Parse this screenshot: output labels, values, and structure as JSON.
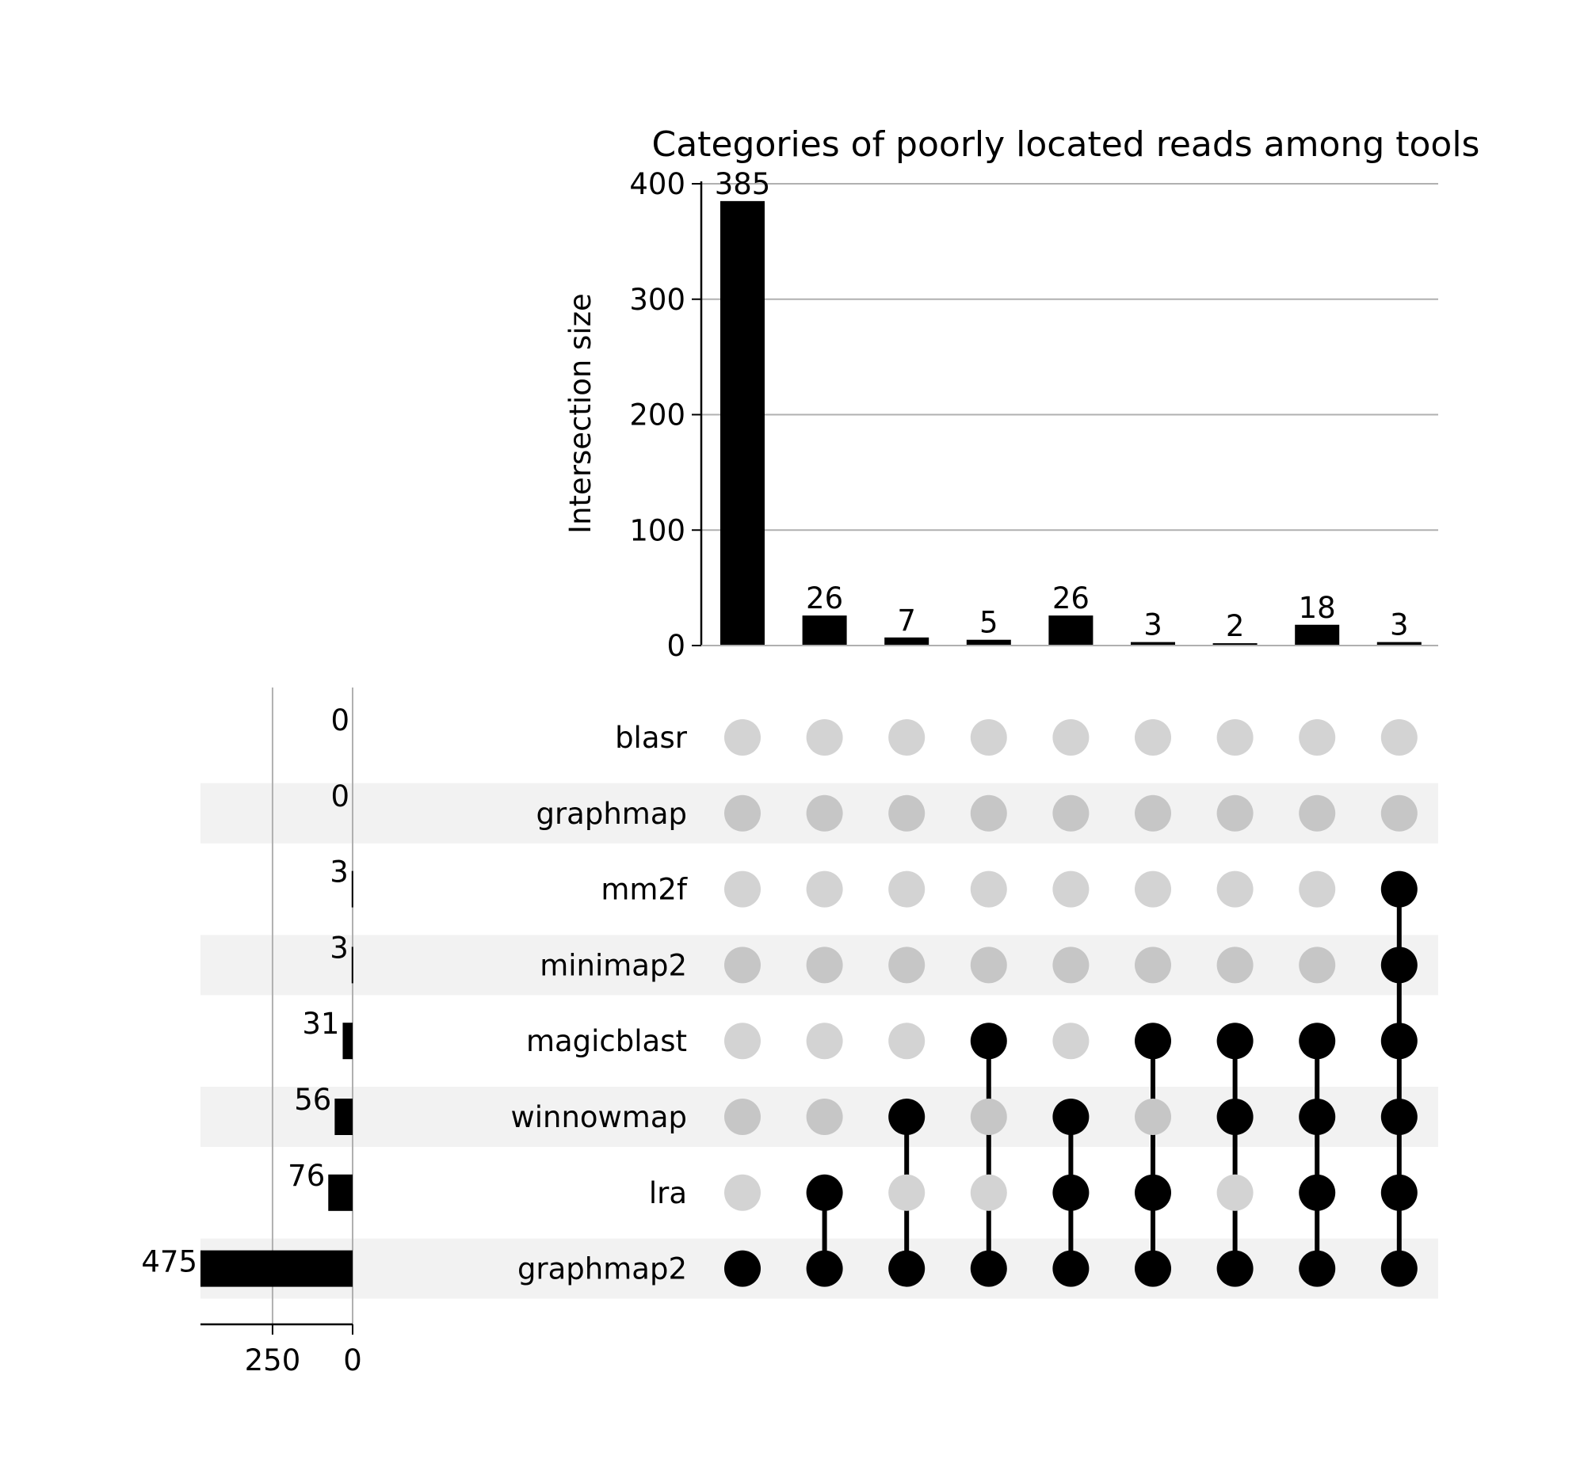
{
  "chart_data": {
    "type": "bar",
    "subtype": "upset",
    "title": "Categories of poorly located reads among tools",
    "ylabel": "Intersection size",
    "ylim": [
      0,
      400
    ],
    "yticks": [
      0,
      100,
      200,
      300,
      400
    ],
    "grid": true,
    "sets": [
      "blasr",
      "graphmap",
      "mm2f",
      "minimap2",
      "magicblast",
      "winnowmap",
      "lra",
      "graphmap2"
    ],
    "set_sizes": [
      0,
      0,
      3,
      3,
      31,
      56,
      76,
      475
    ],
    "set_size_ticks": [
      250,
      0
    ],
    "set_size_xlim": [
      0,
      475
    ],
    "intersections": [
      {
        "members": [
          "graphmap2"
        ],
        "value": 385
      },
      {
        "members": [
          "lra",
          "graphmap2"
        ],
        "value": 26
      },
      {
        "members": [
          "winnowmap",
          "graphmap2"
        ],
        "value": 7
      },
      {
        "members": [
          "magicblast",
          "graphmap2"
        ],
        "value": 5
      },
      {
        "members": [
          "winnowmap",
          "lra",
          "graphmap2"
        ],
        "value": 26
      },
      {
        "members": [
          "magicblast",
          "lra",
          "graphmap2"
        ],
        "value": 3
      },
      {
        "members": [
          "magicblast",
          "winnowmap",
          "graphmap2"
        ],
        "value": 2
      },
      {
        "members": [
          "magicblast",
          "winnowmap",
          "lra",
          "graphmap2"
        ],
        "value": 18
      },
      {
        "members": [
          "mm2f",
          "minimap2",
          "magicblast",
          "winnowmap",
          "lra",
          "graphmap2"
        ],
        "value": 3
      }
    ],
    "colors": {
      "bar": "#000000",
      "dot_active": "#000000",
      "dot_inactive_light": "#d3d3d3",
      "dot_inactive_dark": "#c6c6c6",
      "stripe": "#f2f2f2",
      "grid": "#b0b0b0"
    }
  }
}
